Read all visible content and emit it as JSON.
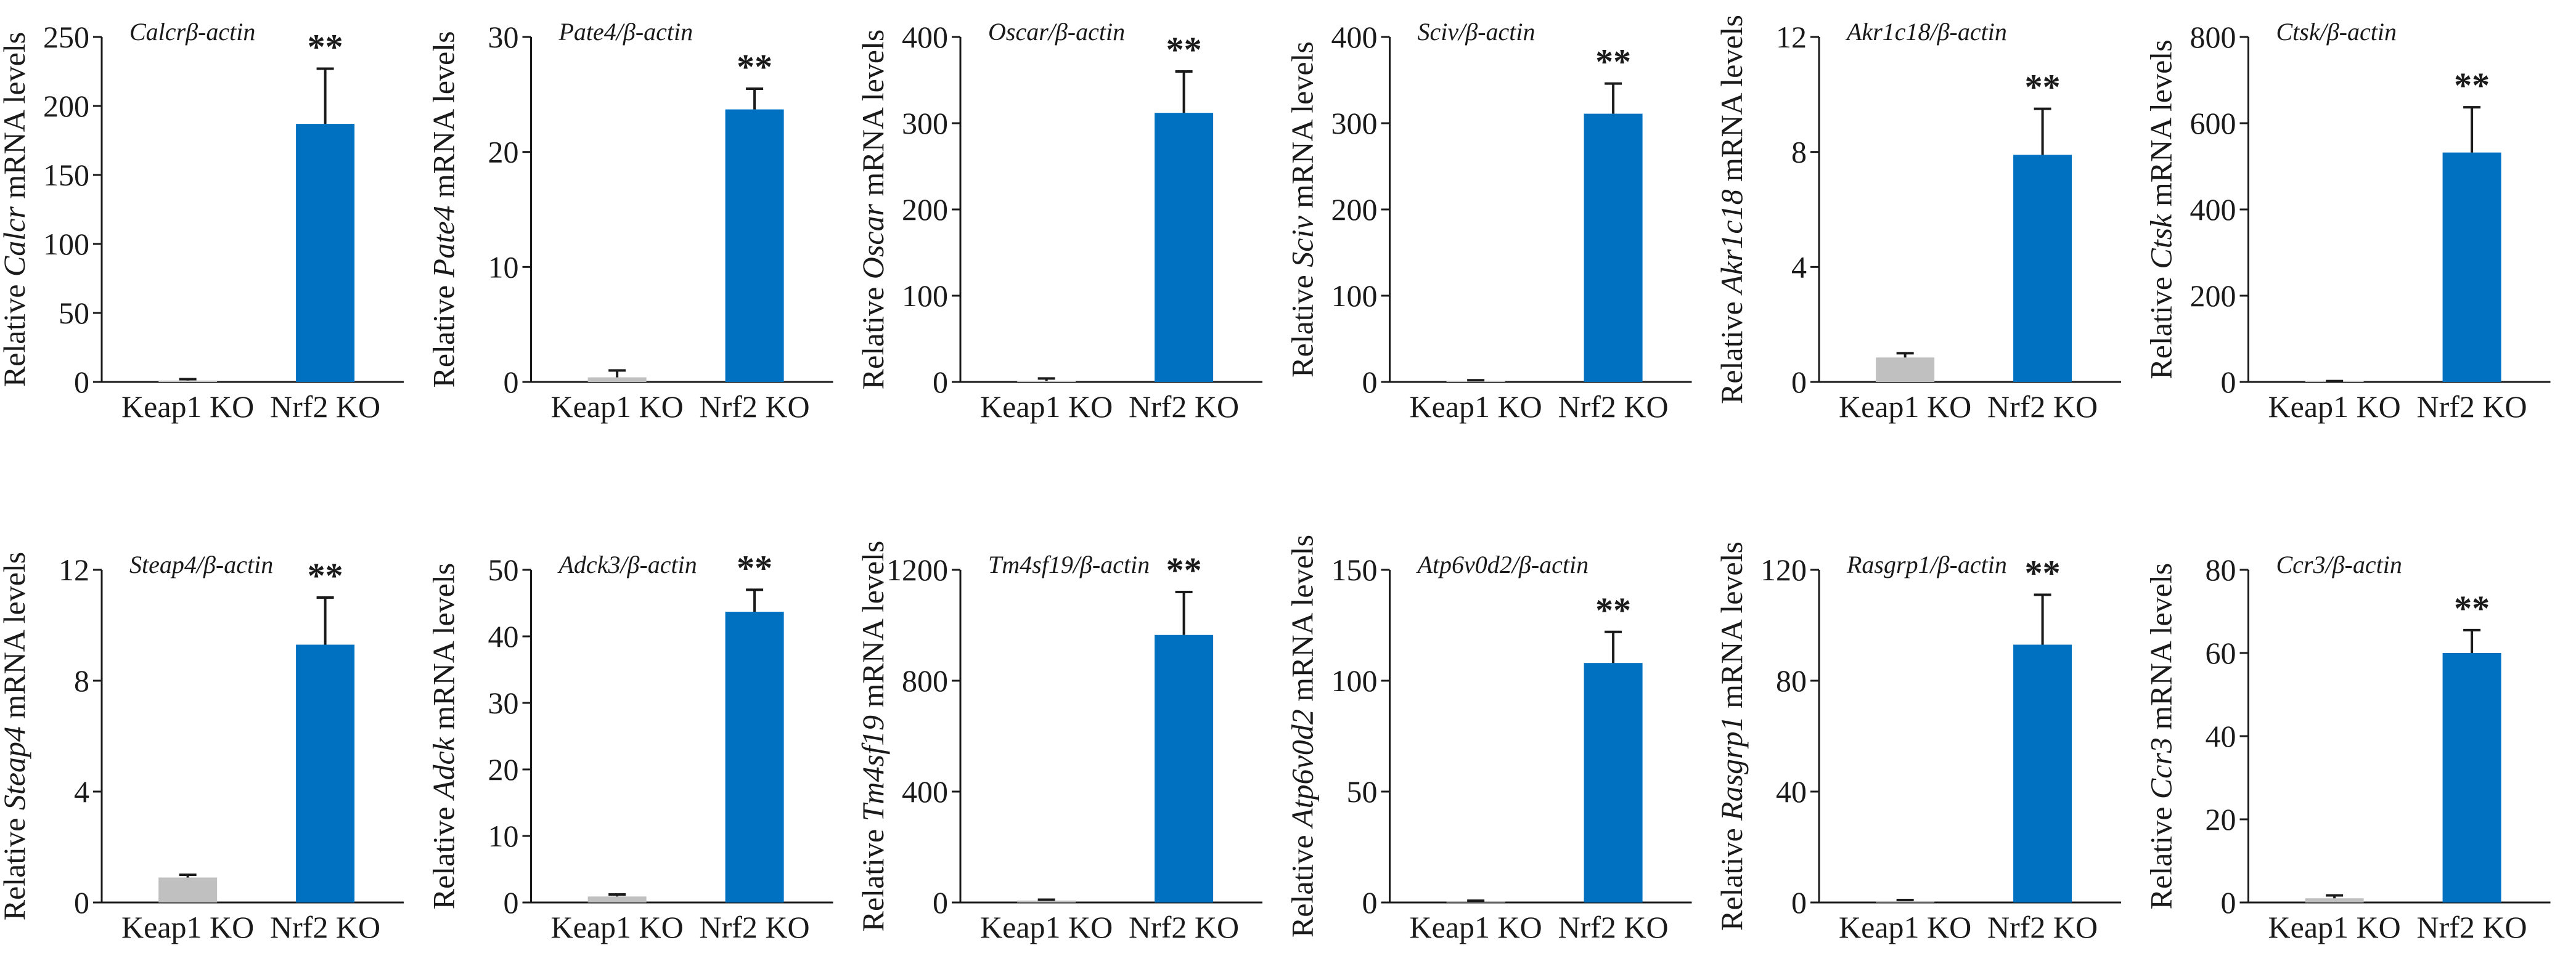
{
  "chart_data": [
    {
      "type": "bar",
      "title": "Calcrβ-actin",
      "gene": "Calcr",
      "ylabel": [
        "Relative ",
        "Calcr",
        " mRNA levels"
      ],
      "categories": [
        "Keap1 KO",
        "Nrf2 KO"
      ],
      "values": [
        1,
        187
      ],
      "errors": [
        1,
        40
      ],
      "ylim": [
        0,
        250
      ],
      "yticks": [
        0,
        50,
        100,
        150,
        200,
        250
      ],
      "significance": [
        "",
        "**"
      ],
      "colors": [
        "#c0c0c0",
        "#0070c0"
      ]
    },
    {
      "type": "bar",
      "title": "Pate4/β-actin",
      "gene": "Pate4",
      "ylabel": [
        "Relative ",
        "Pate4",
        " mRNA levels"
      ],
      "categories": [
        "Keap1 KO",
        "Nrf2 KO"
      ],
      "values": [
        0.4,
        23.7
      ],
      "errors": [
        0.6,
        1.8
      ],
      "ylim": [
        0,
        30
      ],
      "yticks": [
        0,
        10,
        20,
        30
      ],
      "significance": [
        "",
        "**"
      ],
      "colors": [
        "#c0c0c0",
        "#0070c0"
      ]
    },
    {
      "type": "bar",
      "title": "Oscar/β-actin",
      "gene": "Oscar",
      "ylabel": [
        "Relative ",
        "Oscar",
        " mRNA levels"
      ],
      "categories": [
        "Keap1 KO",
        "Nrf2 KO"
      ],
      "values": [
        1,
        312
      ],
      "errors": [
        3,
        48
      ],
      "ylim": [
        0,
        400
      ],
      "yticks": [
        0,
        100,
        200,
        300,
        400
      ],
      "significance": [
        "",
        "**"
      ],
      "colors": [
        "#c0c0c0",
        "#0070c0"
      ]
    },
    {
      "type": "bar",
      "title": "Sciv/β-actin",
      "gene": "Sciv",
      "ylabel": [
        "Relative ",
        "Sciv",
        " mRNA levels"
      ],
      "categories": [
        "Keap1 KO",
        "Nrf2 KO"
      ],
      "values": [
        1,
        311
      ],
      "errors": [
        1,
        35
      ],
      "ylim": [
        0,
        400
      ],
      "yticks": [
        0,
        100,
        200,
        300,
        400
      ],
      "significance": [
        "",
        "**"
      ],
      "colors": [
        "#c0c0c0",
        "#0070c0"
      ]
    },
    {
      "type": "bar",
      "title": "Akr1c18/β-actin",
      "gene": "Akr1c18",
      "ylabel": [
        "Relative ",
        "Akr1c18",
        " mRNA levels"
      ],
      "categories": [
        "Keap1 KO",
        "Nrf2 KO"
      ],
      "values": [
        0.85,
        7.9
      ],
      "errors": [
        0.15,
        1.6
      ],
      "ylim": [
        0,
        12
      ],
      "yticks": [
        0,
        4,
        8,
        12
      ],
      "significance": [
        "",
        "**"
      ],
      "colors": [
        "#c0c0c0",
        "#0070c0"
      ]
    },
    {
      "type": "bar",
      "title": "Ctsk/β-actin",
      "gene": "Ctsk",
      "ylabel": [
        "Relative ",
        "Ctsk",
        " mRNA levels"
      ],
      "categories": [
        "Keap1 KO",
        "Nrf2 KO"
      ],
      "values": [
        1,
        532
      ],
      "errors": [
        1,
        105
      ],
      "ylim": [
        0,
        800
      ],
      "yticks": [
        0,
        200,
        400,
        600,
        800
      ],
      "significance": [
        "",
        "**"
      ],
      "colors": [
        "#c0c0c0",
        "#0070c0"
      ]
    },
    {
      "type": "bar",
      "title": "Steap4/β-actin",
      "gene": "Steap4",
      "ylabel": [
        "Relative ",
        "Steap4",
        " mRNA levels"
      ],
      "categories": [
        "Keap1 KO",
        "Nrf2 KO"
      ],
      "values": [
        0.9,
        9.3
      ],
      "errors": [
        0.1,
        1.7
      ],
      "ylim": [
        0,
        12
      ],
      "yticks": [
        0,
        4,
        8,
        12
      ],
      "significance": [
        "",
        "**"
      ],
      "colors": [
        "#c0c0c0",
        "#0070c0"
      ]
    },
    {
      "type": "bar",
      "title": "Adck3/β-actin",
      "gene": "Adck",
      "ylabel": [
        "Relative ",
        "Adck",
        " mRNA levels"
      ],
      "categories": [
        "Keap1 KO",
        "Nrf2 KO"
      ],
      "values": [
        0.9,
        43.7
      ],
      "errors": [
        0.3,
        3.3
      ],
      "ylim": [
        0,
        50
      ],
      "yticks": [
        0,
        10,
        20,
        30,
        40,
        50
      ],
      "significance": [
        "",
        "**"
      ],
      "colors": [
        "#c0c0c0",
        "#0070c0"
      ]
    },
    {
      "type": "bar",
      "title": "Tm4sf19/β-actin",
      "gene": "Tm4sf19",
      "ylabel": [
        "Relative ",
        "Tm4sf19",
        " mRNA levels"
      ],
      "categories": [
        "Keap1 KO",
        "Nrf2 KO"
      ],
      "values": [
        7,
        965
      ],
      "errors": [
        3,
        155
      ],
      "ylim": [
        0,
        1200
      ],
      "yticks": [
        0,
        400,
        800,
        1200
      ],
      "significance": [
        "",
        "**"
      ],
      "colors": [
        "#c0c0c0",
        "#0070c0"
      ]
    },
    {
      "type": "bar",
      "title": "Atp6v0d2/β-actin",
      "gene": "Atp6v0d2",
      "ylabel": [
        "Relative ",
        "Atp6v0d2",
        " mRNA levels"
      ],
      "categories": [
        "Keap1 KO",
        "Nrf2 KO"
      ],
      "values": [
        0.4,
        108
      ],
      "errors": [
        0.4,
        14
      ],
      "ylim": [
        0,
        150
      ],
      "yticks": [
        0,
        50,
        100,
        150
      ],
      "significance": [
        "",
        "**"
      ],
      "colors": [
        "#c0c0c0",
        "#0070c0"
      ]
    },
    {
      "type": "bar",
      "title": "Rasgrp1/β-actin",
      "gene": "Rasgrp1",
      "ylabel": [
        "Relative ",
        "Rasgrp1",
        " mRNA levels"
      ],
      "categories": [
        "Keap1 KO",
        "Nrf2 KO"
      ],
      "values": [
        0.5,
        93
      ],
      "errors": [
        0.4,
        18
      ],
      "ylim": [
        0,
        120
      ],
      "yticks": [
        0,
        40,
        80,
        120
      ],
      "significance": [
        "",
        "**"
      ],
      "colors": [
        "#c0c0c0",
        "#0070c0"
      ]
    },
    {
      "type": "bar",
      "title": "Ccr3/β-actin",
      "gene": "Ccr3",
      "ylabel": [
        "Relative ",
        "Ccr3",
        " mRNA levels"
      ],
      "categories": [
        "Keap1 KO",
        "Nrf2 KO"
      ],
      "values": [
        1,
        60
      ],
      "errors": [
        0.7,
        5.5
      ],
      "ylim": [
        0,
        80
      ],
      "yticks": [
        0,
        20,
        40,
        60,
        80
      ],
      "significance": [
        "",
        "**"
      ],
      "colors": [
        "#c0c0c0",
        "#0070c0"
      ]
    }
  ]
}
